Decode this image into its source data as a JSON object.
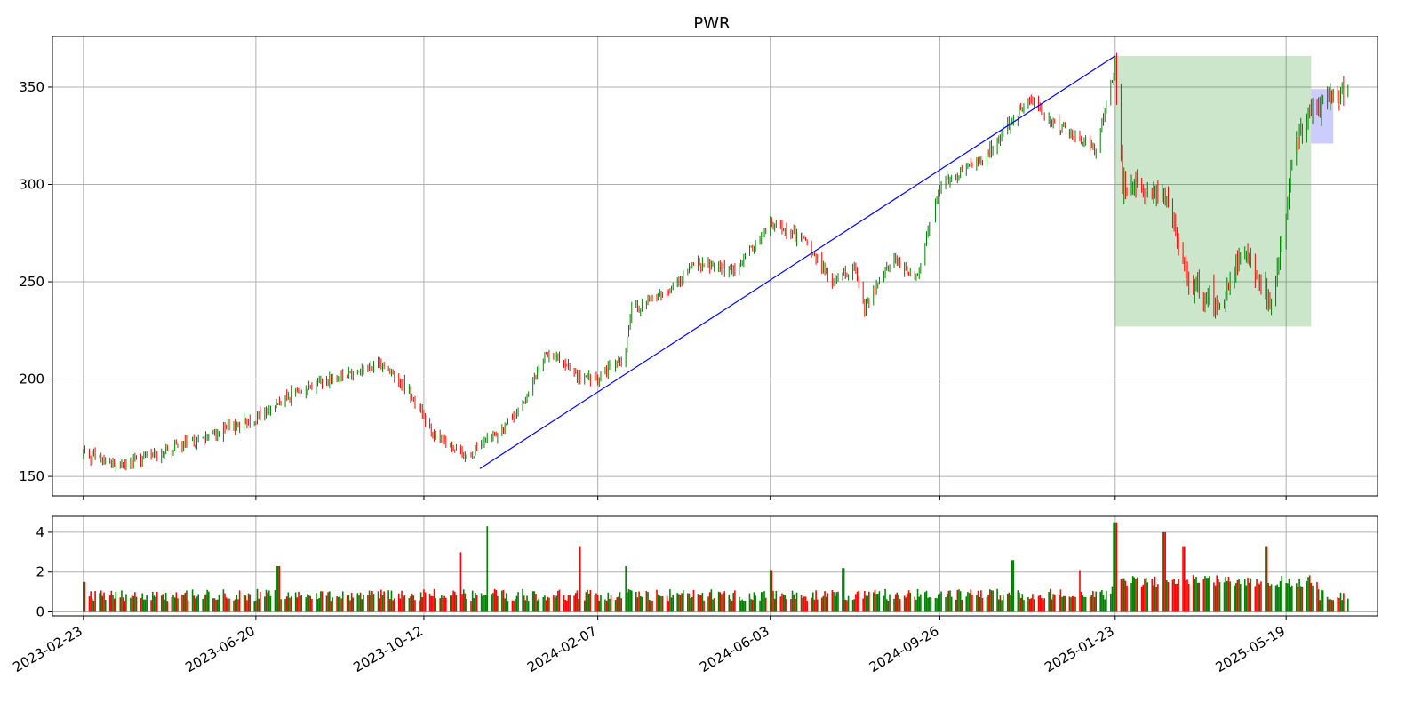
{
  "chart_data": [
    {
      "type": "candlestick",
      "title": "PWR",
      "xlabel": "",
      "ylabel": "",
      "x_range": [
        "2023-02-02",
        "2025-07-20"
      ],
      "ylim": [
        140,
        376
      ],
      "y_ticks": [
        150,
        200,
        250,
        300,
        350
      ],
      "x_tick_labels": [
        "2023-02-23",
        "2023-06-20",
        "2023-10-12",
        "2024-02-07",
        "2024-06-03",
        "2024-09-26",
        "2025-01-23",
        "2025-05-19"
      ],
      "grid": true,
      "colors": {
        "up": "#008000",
        "down": "#ff0000",
        "trendline": "#0000ff",
        "zone": "#008000",
        "recent_zone": "#0000ff"
      },
      "price_path_approx": [
        [
          "2023-02-23",
          162
        ],
        [
          "2023-03-20",
          155
        ],
        [
          "2023-04-05",
          160
        ],
        [
          "2023-05-10",
          168
        ],
        [
          "2023-06-20",
          180
        ],
        [
          "2023-07-20",
          195
        ],
        [
          "2023-08-20",
          203
        ],
        [
          "2023-09-15",
          207
        ],
        [
          "2023-10-01",
          195
        ],
        [
          "2023-10-20",
          170
        ],
        [
          "2023-11-10",
          160
        ],
        [
          "2023-11-25",
          168
        ],
        [
          "2023-12-15",
          183
        ],
        [
          "2024-01-05",
          215
        ],
        [
          "2024-01-25",
          200
        ],
        [
          "2024-02-07",
          200
        ],
        [
          "2024-02-25",
          212
        ],
        [
          "2024-03-01",
          235
        ],
        [
          "2024-03-25",
          245
        ],
        [
          "2024-04-15",
          260
        ],
        [
          "2024-05-10",
          255
        ],
        [
          "2024-06-03",
          280
        ],
        [
          "2024-06-25",
          272
        ],
        [
          "2024-07-15",
          250
        ],
        [
          "2024-07-30",
          257
        ],
        [
          "2024-08-06",
          237
        ],
        [
          "2024-08-25",
          262
        ],
        [
          "2024-09-10",
          252
        ],
        [
          "2024-09-26",
          300
        ],
        [
          "2024-10-25",
          312
        ],
        [
          "2024-11-25",
          345
        ],
        [
          "2024-12-15",
          330
        ],
        [
          "2025-01-10",
          318
        ],
        [
          "2025-01-23",
          362
        ],
        [
          "2025-01-28",
          300
        ],
        [
          "2025-02-25",
          295
        ],
        [
          "2025-03-15",
          250
        ],
        [
          "2025-04-05",
          238
        ],
        [
          "2025-04-20",
          268
        ],
        [
          "2025-05-08",
          240
        ],
        [
          "2025-05-19",
          282
        ],
        [
          "2025-05-25",
          325
        ],
        [
          "2025-06-05",
          335
        ],
        [
          "2025-06-20",
          345
        ],
        [
          "2025-06-30",
          350
        ]
      ],
      "annotations": [
        {
          "type": "trendline",
          "from": [
            "2023-11-19",
            154
          ],
          "to": [
            "2025-01-23",
            366
          ]
        },
        {
          "type": "zone",
          "x_range": [
            "2025-01-23",
            "2025-06-05"
          ],
          "y_range": [
            227,
            366
          ]
        },
        {
          "type": "zone",
          "x_range": [
            "2025-06-05",
            "2025-06-20"
          ],
          "y_range": [
            321,
            349
          ]
        }
      ]
    },
    {
      "type": "bar",
      "title": "",
      "xlabel": "",
      "ylabel": "",
      "ylim": [
        -0.2,
        4.8
      ],
      "y_ticks": [
        0,
        2,
        4
      ],
      "grid": true,
      "colors": {
        "up": "#008000",
        "down": "#ff0000"
      },
      "volume_spikes": [
        [
          "2023-02-23",
          1.5
        ],
        [
          "2023-07-05",
          2.3
        ],
        [
          "2023-11-05",
          3.0
        ],
        [
          "2023-11-25",
          4.3
        ],
        [
          "2024-01-27",
          3.3
        ],
        [
          "2024-02-25",
          2.3
        ],
        [
          "2024-06-03",
          2.1
        ],
        [
          "2024-07-22",
          2.2
        ],
        [
          "2024-11-15",
          2.6
        ],
        [
          "2024-12-29",
          2.1
        ],
        [
          "2025-01-23",
          4.5
        ],
        [
          "2025-02-25",
          4.0
        ],
        [
          "2025-03-10",
          3.3
        ],
        [
          "2025-05-05",
          3.3
        ]
      ]
    }
  ]
}
